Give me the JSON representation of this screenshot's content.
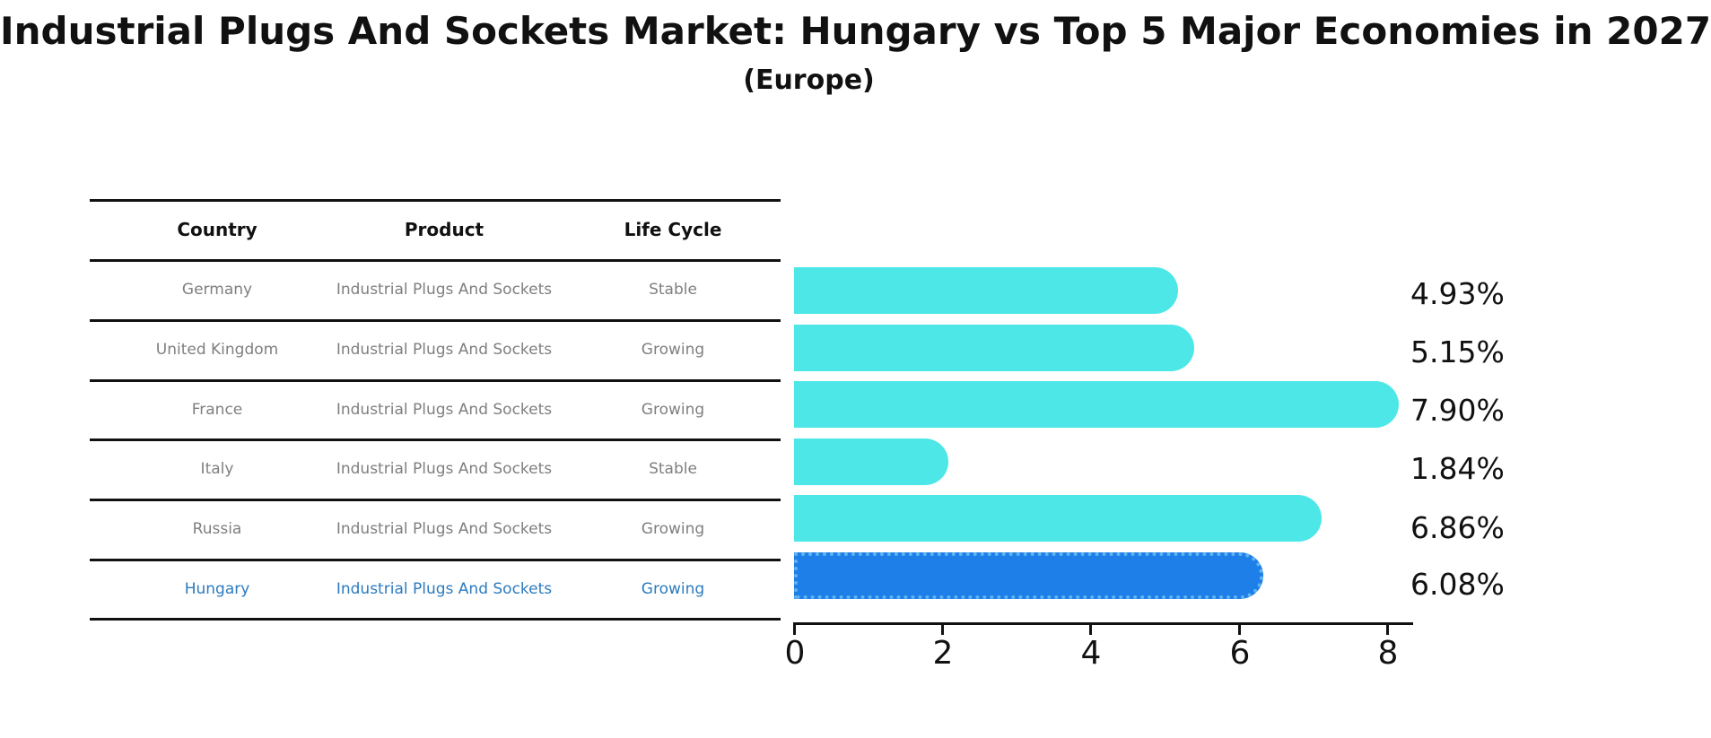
{
  "title": "Industrial Plugs And Sockets Market: Hungary vs Top 5 Major Economies in 2027",
  "subtitle": "(Europe)",
  "table": {
    "headers": [
      "Country",
      "Product",
      "Life Cycle"
    ],
    "rows": [
      {
        "country": "Germany",
        "product": "Industrial Plugs And Sockets",
        "life_cycle": "Stable"
      },
      {
        "country": "United Kingdom",
        "product": "Industrial Plugs And Sockets",
        "life_cycle": "Growing"
      },
      {
        "country": "France",
        "product": "Industrial Plugs And Sockets",
        "life_cycle": "Growing"
      },
      {
        "country": "Italy",
        "product": "Industrial Plugs And Sockets",
        "life_cycle": "Stable"
      },
      {
        "country": "Russia",
        "product": "Industrial Plugs And Sockets",
        "life_cycle": "Growing"
      },
      {
        "country": "Hungary",
        "product": "Industrial Plugs And Sockets",
        "life_cycle": "Growing"
      }
    ],
    "highlight_row": "Hungary"
  },
  "chart_data": {
    "type": "bar",
    "orientation": "horizontal",
    "title": "Industrial Plugs And Sockets Market: Hungary vs Top 5 Major Economies in 2027 (Europe)",
    "categories": [
      "Germany",
      "United Kingdom",
      "France",
      "Italy",
      "Russia",
      "Hungary"
    ],
    "values": [
      4.93,
      5.15,
      7.9,
      1.84,
      6.86,
      6.08
    ],
    "labels": [
      "4.93%",
      "5.15%",
      "7.90%",
      "1.84%",
      "6.86%",
      "6.08%"
    ],
    "unit": "%",
    "xlim": [
      0,
      8.3
    ],
    "xticks": [
      0,
      2,
      4,
      6,
      8
    ],
    "grid": false,
    "legend": false,
    "highlight_index": 5
  },
  "colors": {
    "bar": "#4de7e7",
    "highlight_bar": "#1e7fe8",
    "highlight_border": "#5fb3f2",
    "highlight_text": "#2c7bbf",
    "table_text": "#7f7f7f",
    "axis": "#111111"
  }
}
